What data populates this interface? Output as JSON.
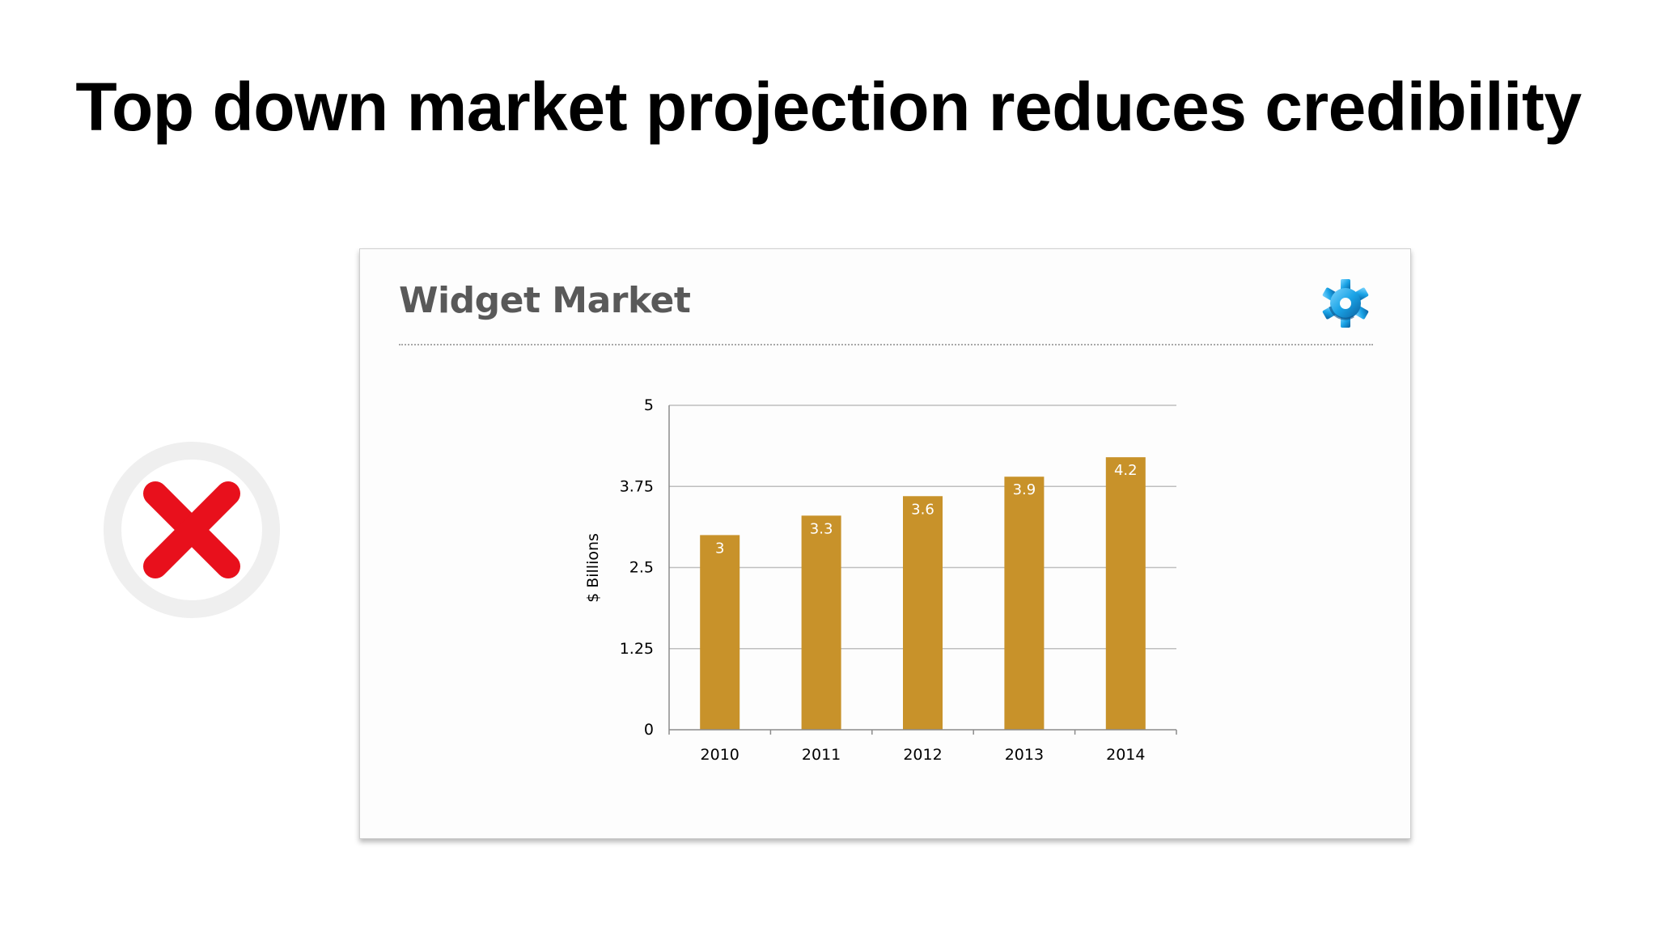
{
  "slide": {
    "title": "Top down market projection reduces credibility"
  },
  "badge": {
    "icon": "red-x-icon",
    "color": "#e8101c",
    "ring_color": "#efefef"
  },
  "inner_slide": {
    "title": "Widget Market",
    "logo_icon": "blue-gear-icon"
  },
  "chart_data": {
    "type": "bar",
    "title": "",
    "xlabel": "",
    "ylabel": "$ Billions",
    "categories": [
      "2010",
      "2011",
      "2012",
      "2013",
      "2014"
    ],
    "values": [
      3,
      3.3,
      3.6,
      3.9,
      4.2
    ],
    "data_labels": [
      "3",
      "3.3",
      "3.6",
      "3.9",
      "4.2"
    ],
    "ylim": [
      0,
      5
    ],
    "yticks": [
      0,
      1.25,
      2.5,
      3.75,
      5
    ],
    "ytick_labels": [
      "0",
      "1.25",
      "2.5",
      "3.75",
      "5"
    ],
    "grid": true,
    "legend": "none",
    "bar_color": "#c8922a"
  }
}
